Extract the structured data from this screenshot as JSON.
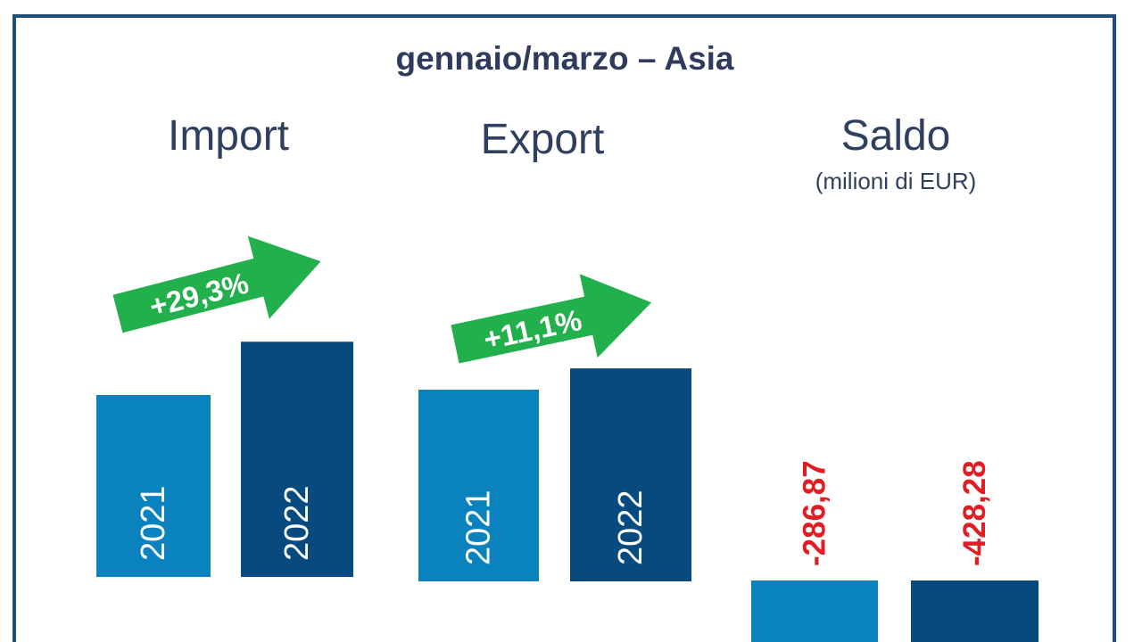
{
  "chart_data": {
    "type": "bar",
    "title": "gennaio/marzo – Asia",
    "unit_note": "(milioni di EUR)",
    "categories": [
      "2021",
      "2022"
    ],
    "colors": {
      "2021": "#0A82BE",
      "2022": "#064A7F",
      "arrow": "#21B04B",
      "negative_label": "#E31B23",
      "text": "#2F3B5C",
      "frame": "#1F4E79"
    },
    "panels": [
      {
        "name": "Import",
        "change_label": "+29,3%",
        "values": [
          1.0,
          1.293
        ],
        "value_labels": [
          "",
          ""
        ]
      },
      {
        "name": "Export",
        "change_label": "+11,1%",
        "values": [
          1.0,
          1.111
        ],
        "value_labels": [
          "",
          ""
        ]
      },
      {
        "name": "Saldo",
        "change_label": "",
        "values": [
          -286.87,
          -428.28
        ],
        "value_labels": [
          "-286,87",
          "-428,28"
        ]
      }
    ]
  }
}
